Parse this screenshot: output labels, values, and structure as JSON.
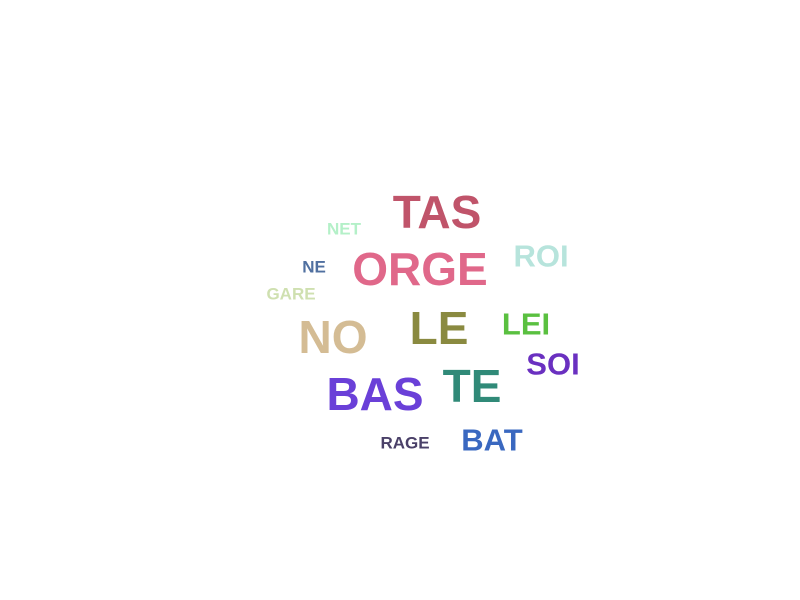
{
  "words": [
    {
      "text": "TAS",
      "color": "#c0546a"
    },
    {
      "text": "NET",
      "color": "#b4f0c8"
    },
    {
      "text": "ROI",
      "color": "#b7e4dc"
    },
    {
      "text": "ORGE",
      "color": "#e0688a"
    },
    {
      "text": "NE",
      "color": "#5070a0"
    },
    {
      "text": "GARE",
      "color": "#cfe0b0"
    },
    {
      "text": "LEI",
      "color": "#5ac040"
    },
    {
      "text": "LE",
      "color": "#8a8a40"
    },
    {
      "text": "NO",
      "color": "#d4bc94"
    },
    {
      "text": "SOI",
      "color": "#6a30c0"
    },
    {
      "text": "TE",
      "color": "#308a78"
    },
    {
      "text": "BAS",
      "color": "#6a40d8"
    },
    {
      "text": "RAGE",
      "color": "#4a4068"
    },
    {
      "text": "BAT",
      "color": "#3a68c0"
    }
  ]
}
